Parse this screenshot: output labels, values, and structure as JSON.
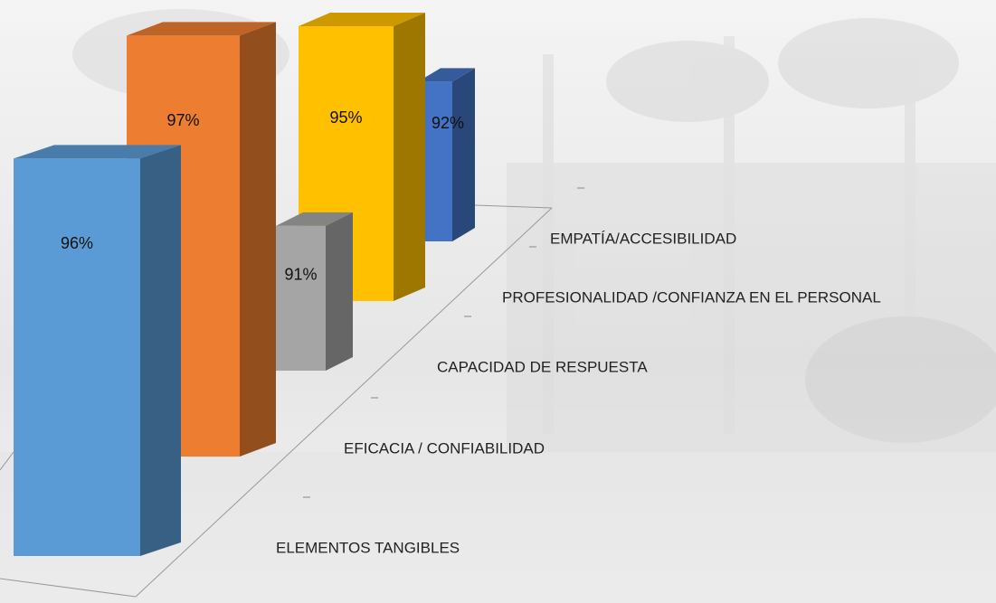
{
  "chart_data": {
    "type": "bar3d",
    "categories": [
      "ELEMENTOS TANGIBLES",
      "EFICACIA / CONFIABILIDAD",
      "CAPACIDAD DE RESPUESTA",
      "PROFESIONALIDAD /CONFIANZA EN EL PERSONAL",
      "EMPATÍA/ACCESIBILIDAD"
    ],
    "values": [
      96,
      97,
      91,
      95,
      92
    ],
    "value_labels": [
      "96%",
      "97%",
      "91%",
      "95%",
      "92%"
    ],
    "colors": [
      "#5b9bd5",
      "#ed7d31",
      "#a5a5a5",
      "#ffc000",
      "#4472c4"
    ]
  }
}
